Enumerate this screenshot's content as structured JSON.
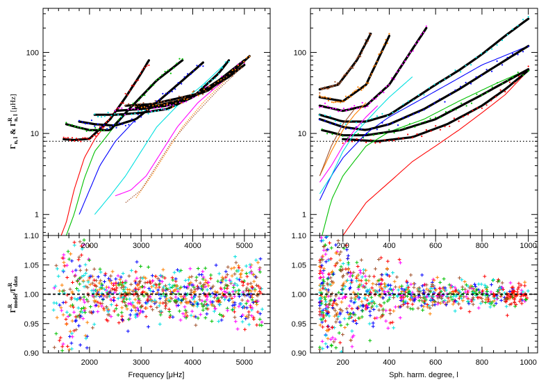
{
  "chart_data": [
    {
      "panel": "top-left",
      "type": "line",
      "ylabel": "Γn,l & ΓRn,l [μHz]",
      "yscale": "log",
      "xlim": [
        1100,
        5500
      ],
      "ylim": [
        0.55,
        350
      ],
      "yticks": [
        "1",
        "10",
        "100"
      ],
      "xticks_inner": [
        "2000",
        "3000",
        "4000",
        "5000"
      ],
      "reference_level": 8.0,
      "series": [
        {
          "name": "red",
          "color": "#ff0000",
          "model_x": [
            1450,
            1550,
            1700,
            1900,
            2100,
            2400,
            2700,
            3000,
            3150
          ],
          "model_y": [
            0.55,
            0.8,
            2.0,
            5.0,
            8.5,
            15,
            28,
            55,
            80
          ],
          "data_x": [
            1500,
            1700,
            2000,
            2400,
            2700,
            3000,
            3150
          ],
          "data_y": [
            8.5,
            8.3,
            8.6,
            15,
            28,
            55,
            80
          ]
        },
        {
          "name": "green",
          "color": "#00c000",
          "model_x": [
            1550,
            1700,
            1900,
            2100,
            2400,
            2800,
            3300,
            3800
          ],
          "model_y": [
            0.55,
            1.0,
            2.8,
            6.0,
            10.5,
            21,
            45,
            80
          ],
          "data_x": [
            1550,
            1750,
            2000,
            2400,
            2800,
            3300,
            3800
          ],
          "data_y": [
            13,
            12,
            11,
            11,
            21,
            45,
            80
          ]
        },
        {
          "name": "blue",
          "color": "#0000ff",
          "model_x": [
            1800,
            2000,
            2200,
            2500,
            2900,
            3300,
            3800,
            4200
          ],
          "model_y": [
            1.0,
            2.0,
            4.0,
            8.0,
            15,
            24,
            45,
            75
          ],
          "data_x": [
            1800,
            2100,
            2500,
            2900,
            3300,
            3800,
            4200
          ],
          "data_y": [
            14,
            13,
            12.5,
            15,
            24,
            45,
            75
          ]
        },
        {
          "name": "cyan",
          "color": "#00e0e0",
          "model_x": [
            2100,
            2400,
            2700,
            3000,
            3300,
            3700,
            4200,
            4700
          ],
          "model_y": [
            1.0,
            1.7,
            3.0,
            6.0,
            12,
            22,
            40,
            80
          ],
          "data_x": [
            2100,
            2500,
            3000,
            3500,
            4000,
            4500,
            4700
          ],
          "data_y": [
            17,
            17,
            18,
            20,
            28,
            55,
            80
          ]
        },
        {
          "name": "magenta",
          "color": "#ff00ff",
          "model_x": [
            2500,
            2800,
            3100,
            3400,
            3700,
            4100,
            4600,
            5000
          ],
          "model_y": [
            1.7,
            2.0,
            3.0,
            6.0,
            12,
            24,
            45,
            80
          ],
          "data_x": [
            2500,
            3000,
            3500,
            4000,
            4500,
            5000
          ],
          "data_y": [
            19,
            20,
            22,
            28,
            45,
            80
          ]
        },
        {
          "name": "orange",
          "color": "#ff8000",
          "model_x": [
            2900,
            3200,
            3500,
            3800,
            4200,
            4700,
            5100
          ],
          "model_y": [
            1.6,
            3.0,
            6.0,
            12,
            24,
            50,
            90
          ],
          "data_x": [
            2900,
            3300,
            3800,
            4300,
            4800,
            5100
          ],
          "data_y": [
            21,
            22,
            26,
            34,
            60,
            90
          ]
        },
        {
          "name": "brown",
          "color": "#a0522d",
          "model_x": [
            2700,
            3000,
            3300,
            3600,
            4000,
            4500,
            5000
          ],
          "model_y": [
            1.4,
            2.0,
            4.0,
            8.0,
            16,
            35,
            70
          ],
          "data_x": [
            2700,
            3200,
            3700,
            4200,
            4700,
            5000
          ],
          "data_y": [
            22,
            23,
            27,
            32,
            50,
            70
          ]
        }
      ]
    },
    {
      "panel": "top-right",
      "type": "line",
      "yscale": "log",
      "xlim": [
        60,
        1040
      ],
      "ylim": [
        0.55,
        350
      ],
      "yticks": [
        "1",
        "10",
        "100"
      ],
      "xticks_inner": [
        "200",
        "400",
        "600",
        "800",
        "1000"
      ],
      "reference_level": 8.0,
      "series": [
        {
          "name": "red",
          "color": "#ff0000",
          "model_x": [
            200,
            300,
            400,
            500,
            600,
            700,
            800,
            900,
            1000
          ],
          "model_y": [
            0.55,
            1.4,
            2.5,
            4.5,
            7,
            11,
            18,
            30,
            60
          ],
          "data_x": [
            200,
            350,
            500,
            650,
            800,
            900,
            1000
          ],
          "data_y": [
            8.5,
            8.0,
            9.0,
            13,
            22,
            35,
            60
          ]
        },
        {
          "name": "green",
          "color": "#00c000",
          "model_x": [
            110,
            150,
            200,
            300,
            400,
            550,
            700,
            850,
            1000
          ],
          "model_y": [
            0.55,
            1.5,
            3.0,
            7.0,
            10.5,
            15,
            25,
            40,
            62
          ],
          "data_x": [
            110,
            200,
            300,
            450,
            600,
            800,
            1000
          ],
          "data_y": [
            11,
            9.5,
            9.5,
            11,
            15,
            30,
            62
          ]
        },
        {
          "name": "blue",
          "color": "#0000ff",
          "model_x": [
            100,
            150,
            200,
            300,
            400,
            500,
            650,
            800,
            1000
          ],
          "model_y": [
            1.5,
            3.0,
            5.0,
            10,
            16,
            23,
            40,
            70,
            120
          ],
          "data_x": [
            100,
            200,
            300,
            400,
            550,
            700,
            850,
            1000
          ],
          "data_y": [
            15,
            12,
            11,
            13,
            20,
            35,
            65,
            120
          ]
        },
        {
          "name": "cyan",
          "color": "#00e0e0",
          "model_x": [
            100,
            150,
            200,
            250,
            300,
            350,
            400,
            500
          ],
          "model_y": [
            1.8,
            3.0,
            6.0,
            10,
            14,
            20,
            28,
            50
          ],
          "data_x": [
            100,
            200,
            300,
            400,
            500,
            600,
            700,
            800,
            900,
            1000
          ],
          "data_y": [
            17,
            14,
            14,
            17,
            26,
            40,
            60,
            95,
            160,
            260
          ]
        },
        {
          "name": "magenta",
          "color": "#ff00ff",
          "model_x": [
            100,
            150,
            200,
            250,
            300,
            350
          ],
          "model_y": [
            2.5,
            4.0,
            7.0,
            11,
            16,
            22
          ],
          "data_x": [
            100,
            200,
            300,
            400,
            500,
            560
          ],
          "data_y": [
            22,
            19,
            22,
            40,
            110,
            200
          ]
        },
        {
          "name": "orange",
          "color": "#ff8000",
          "model_x": [
            100,
            150,
            200,
            250,
            300
          ],
          "model_y": [
            3.0,
            6.0,
            11,
            17,
            24
          ],
          "data_x": [
            100,
            200,
            300,
            400
          ],
          "data_y": [
            28,
            25,
            40,
            160
          ]
        },
        {
          "name": "brown",
          "color": "#a0522d",
          "model_x": [
            100,
            150,
            200,
            250
          ],
          "model_y": [
            3.0,
            7.0,
            13,
            20
          ],
          "data_x": [
            100,
            180,
            260,
            320
          ],
          "data_y": [
            35,
            40,
            80,
            170
          ]
        }
      ]
    },
    {
      "panel": "bottom-left",
      "type": "scatter",
      "xlabel": "Frequency [μHz]",
      "ylabel": "ΓRmodel/ΓRdata",
      "xlim": [
        1100,
        5500
      ],
      "ylim": [
        0.9,
        1.1
      ],
      "xticks": [
        "2000",
        "3000",
        "4000",
        "5000"
      ],
      "yticks": [
        "0.90",
        "0.95",
        "1.00",
        "1.05",
        "1.10"
      ],
      "reference_level": 1.0,
      "scatter_spread": "ratio values cluster at 1.00 with roughly ±0.05 scatter, wider below 2000 μHz (down to 0.90)"
    },
    {
      "panel": "bottom-right",
      "type": "scatter",
      "xlabel": "Sph. harm. degree, l",
      "xlim": [
        60,
        1040
      ],
      "ylim": [
        0.9,
        1.1
      ],
      "xticks": [
        "200",
        "400",
        "600",
        "800",
        "1000"
      ],
      "yticks": [
        "0.90",
        "0.95",
        "1.00",
        "1.05",
        "1.10"
      ],
      "reference_level": 1.0,
      "scatter_spread": "ratio values cluster at 1.00, wide scatter at low l (< 250), narrowing above l ≈ 400"
    }
  ],
  "labels": {
    "ylabel_top_main": "Γ",
    "ylabel_top_sub": "n, l",
    "ylabel_top_amp": "&",
    "ylabel_top_main2": "Γ",
    "ylabel_top_sup": "R",
    "ylabel_top_sub2": "n, l",
    "ylabel_top_unit": "[μHz]",
    "ylabel_bot_main": "Γ",
    "ylabel_bot_sup": "R",
    "ylabel_bot_sub": "model",
    "ylabel_bot_slash": "/Γ",
    "ylabel_bot_sup2": "R",
    "ylabel_bot_sub2": "data",
    "xlabel_left": "Frequency [μHz]",
    "xlabel_right": "Sph. harm. degree, l"
  }
}
